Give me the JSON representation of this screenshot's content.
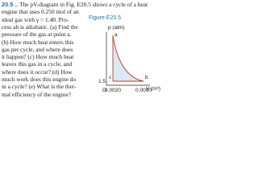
{
  "problem": {
    "number": "20.5",
    "difficulty": "..",
    "lines": [
      "The pV-diagram in Fig. E20.5 shows a cycle of a heat",
      "engine that uses 0.250 mol of an",
      "ideal gas with γ = 1.40. Pro-",
      "cess ab is adiabatic. (a) Find the",
      "pressure of the gas at point a.",
      "(b) How much heat enters this",
      "gas per cycle, and where does",
      "it happen? (c) How much heat",
      "leaves this gas in a cycle, and",
      "where does it occur? (d) How",
      "much work does this engine do",
      "in a cycle? (e) What is the ther-",
      "mal efficiency of the engine?"
    ]
  },
  "figure": {
    "label": "Figure E20.5",
    "y_axis": "p (atm)",
    "x_axis": "V (m³)",
    "origin": "O",
    "y_tick": "1.5",
    "x_ticks": [
      "0.0020",
      "0.0090"
    ],
    "points": [
      "a",
      "b",
      "c"
    ]
  }
}
